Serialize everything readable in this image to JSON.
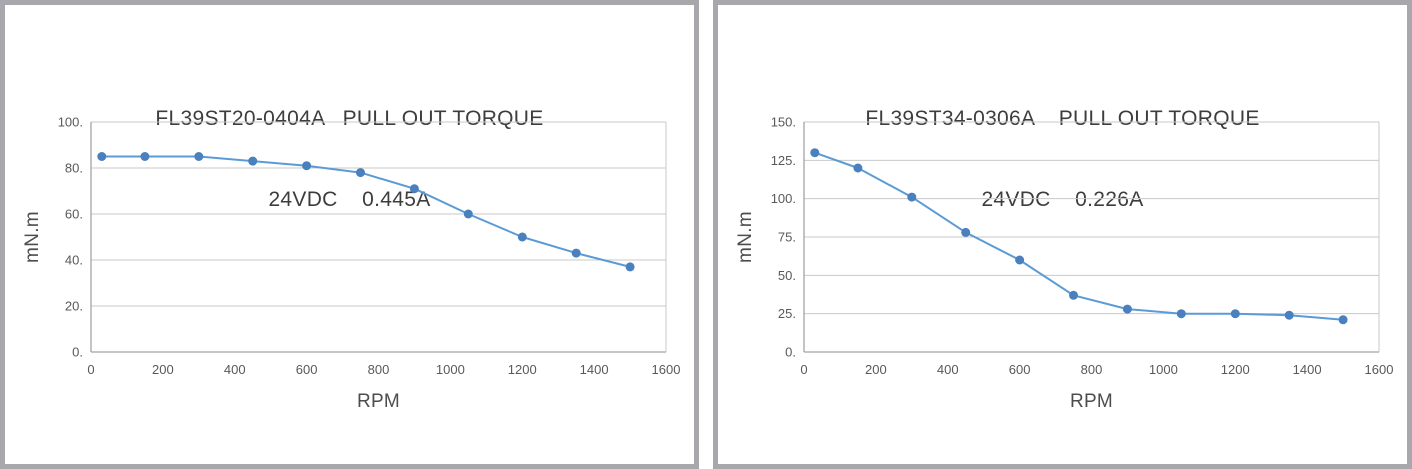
{
  "colors": {
    "panel_border": "#a8a8ac",
    "grid": "#c9c9c9",
    "axis": "#a3a3a3",
    "tick_text": "#595959",
    "title_text": "#3d3d3d",
    "series_blue": "#5b9bd5"
  },
  "chart_data": [
    {
      "type": "line",
      "title_line1": "FL39ST20-0404A   PULL OUT TORQUE",
      "title_line2": "24VDC    0.445A",
      "model": "FL39ST20-0404A",
      "test_condition_voltage": "24VDC",
      "test_condition_current": "0.445A",
      "xlabel": "RPM",
      "ylabel": "mN.m",
      "x": [
        30,
        150,
        300,
        450,
        600,
        750,
        900,
        1050,
        1200,
        1350,
        1500
      ],
      "y": [
        85,
        85,
        85,
        83,
        81,
        78,
        71,
        60,
        50,
        43,
        37
      ],
      "xlim": [
        0,
        1600
      ],
      "ylim": [
        0,
        100
      ],
      "xticks": [
        0,
        200,
        400,
        600,
        800,
        1000,
        1200,
        1400,
        1600
      ],
      "xtick_labels": [
        "0",
        "200",
        "400",
        "600",
        "800",
        "1000",
        "1200",
        "1400",
        "1600"
      ],
      "yticks": [
        0,
        20,
        40,
        60,
        80,
        100
      ],
      "ytick_labels": [
        "0.",
        "20.",
        "40.",
        "60.",
        "80.",
        "100."
      ],
      "grid": true,
      "legend": false,
      "line_color": "#5b9bd5",
      "marker_color": "#4a80bd",
      "marker": "circle"
    },
    {
      "type": "line",
      "title_line1": "FL39ST34-0306A    PULL OUT TORQUE",
      "title_line2": "24VDC    0.226A",
      "model": "FL39ST34-0306A",
      "test_condition_voltage": "24VDC",
      "test_condition_current": "0.226A",
      "xlabel": "RPM",
      "ylabel": "mN.m",
      "x": [
        30,
        150,
        300,
        450,
        600,
        750,
        900,
        1050,
        1200,
        1350,
        1500
      ],
      "y": [
        130,
        120,
        101,
        78,
        60,
        37,
        28,
        25,
        25,
        24,
        21
      ],
      "xlim": [
        0,
        1600
      ],
      "ylim": [
        0,
        150
      ],
      "xticks": [
        0,
        200,
        400,
        600,
        800,
        1000,
        1200,
        1400,
        1600
      ],
      "xtick_labels": [
        "0",
        "200",
        "400",
        "600",
        "800",
        "1000",
        "1200",
        "1400",
        "1600"
      ],
      "yticks": [
        0,
        25,
        50,
        75,
        100,
        125,
        150
      ],
      "ytick_labels": [
        "0.",
        "25.",
        "50.",
        "75.",
        "100.",
        "125.",
        "150."
      ],
      "grid": true,
      "legend": false,
      "line_color": "#5b9bd5",
      "marker_color": "#4a80bd",
      "marker": "circle"
    }
  ]
}
